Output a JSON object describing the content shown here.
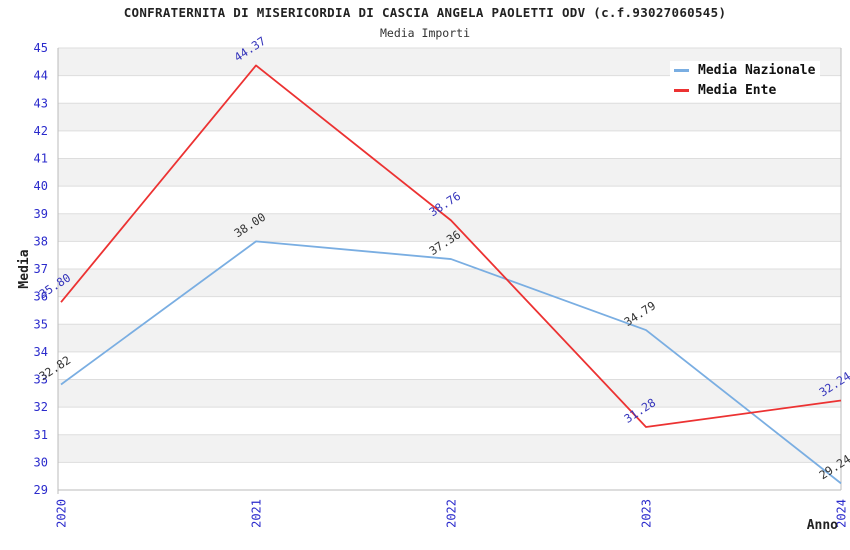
{
  "title": "CONFRATERNITA DI MISERICORDIA DI CASCIA ANGELA PAOLETTI ODV (c.f.93027060545)",
  "subtitle": "Media Importi",
  "chart_data": {
    "type": "line",
    "x": [
      2020,
      2021,
      2022,
      2023,
      2024
    ],
    "series": [
      {
        "name": "Media Nazionale",
        "values": [
          32.82,
          38.0,
          37.36,
          34.79,
          29.24
        ],
        "color": "#7AAEE2",
        "label_color": "#333333"
      },
      {
        "name": "Media Ente",
        "values": [
          35.8,
          44.37,
          38.76,
          31.28,
          32.24
        ],
        "color": "#EC3232",
        "label_color": "#3535BB"
      }
    ],
    "xlabel": "Anno",
    "ylabel": "Media",
    "ylim": [
      29,
      45
    ],
    "ytick_step": 1,
    "grid": true,
    "band_fill": "#F2F2F2",
    "gridline_color": "#DDDDDD",
    "border_color": "#BBBBBB",
    "tick_color": "#2B2BCC",
    "legend_position": "top-right"
  }
}
